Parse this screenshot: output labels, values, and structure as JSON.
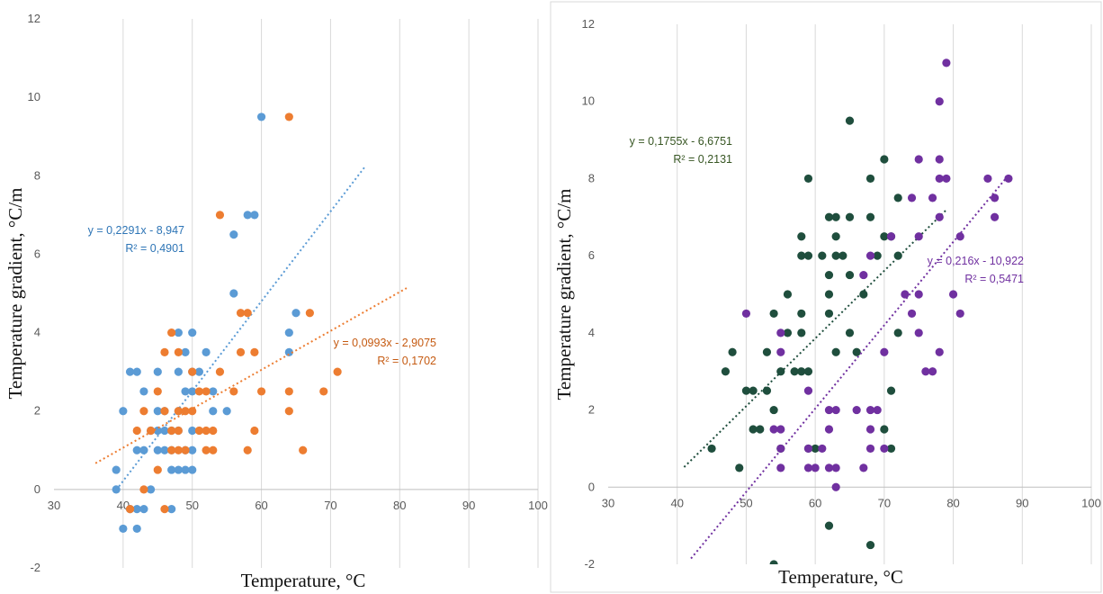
{
  "charts": [
    {
      "type": "scatter",
      "xlabel": "Temperature, °C",
      "ylabel": "Temperature gradient, °C/m",
      "xlim": [
        30,
        100
      ],
      "ylim": [
        -2,
        12
      ],
      "xticks": [
        "30",
        "40",
        "50",
        "60",
        "70",
        "80",
        "90",
        "100"
      ],
      "yticks": [
        "-2",
        "0",
        "2",
        "4",
        "6",
        "8",
        "10",
        "12"
      ],
      "grid": "vertical",
      "series": [
        {
          "color": "#5b9bd5",
          "points": [
            [
              39,
              0.5
            ],
            [
              39,
              0
            ],
            [
              40,
              2
            ],
            [
              40,
              -1
            ],
            [
              41,
              3
            ],
            [
              41,
              -0.5
            ],
            [
              42,
              3
            ],
            [
              42,
              1
            ],
            [
              42,
              -0.5
            ],
            [
              42,
              -1
            ],
            [
              43,
              2.5
            ],
            [
              43,
              1
            ],
            [
              43,
              -0.5
            ],
            [
              44,
              1.5
            ],
            [
              44,
              0
            ],
            [
              45,
              3
            ],
            [
              45,
              2
            ],
            [
              45,
              1.5
            ],
            [
              45,
              1
            ],
            [
              46,
              2
            ],
            [
              46,
              1
            ],
            [
              46,
              1.5
            ],
            [
              47,
              1.5
            ],
            [
              47,
              1
            ],
            [
              47,
              0.5
            ],
            [
              47,
              -0.5
            ],
            [
              48,
              4
            ],
            [
              48,
              3
            ],
            [
              48,
              2
            ],
            [
              48,
              1.5
            ],
            [
              48,
              0.5
            ],
            [
              49,
              3.5
            ],
            [
              49,
              2.5
            ],
            [
              49,
              1
            ],
            [
              49,
              0.5
            ],
            [
              50,
              4
            ],
            [
              50,
              3
            ],
            [
              50,
              2.5
            ],
            [
              50,
              1.5
            ],
            [
              50,
              1
            ],
            [
              50,
              0.5
            ],
            [
              51,
              3
            ],
            [
              52,
              3.5
            ],
            [
              53,
              2.5
            ],
            [
              53,
              2
            ],
            [
              55,
              2
            ],
            [
              56,
              6.5
            ],
            [
              56,
              5
            ],
            [
              58,
              7
            ],
            [
              59,
              7
            ],
            [
              60,
              9.5
            ],
            [
              64,
              4
            ],
            [
              64,
              3.5
            ],
            [
              65,
              4.5
            ]
          ],
          "trendline": {
            "x_range": [
              39,
              75
            ],
            "slope": 0.2291,
            "intercept": -8.947,
            "eq_text": "y = 0,2291x - 8,947",
            "r2_text": "R² = 0,4901"
          }
        },
        {
          "color": "#ed7d31",
          "points": [
            [
              41,
              -0.5
            ],
            [
              42,
              1.5
            ],
            [
              43,
              2
            ],
            [
              43,
              0
            ],
            [
              44,
              1.5
            ],
            [
              45,
              2.5
            ],
            [
              45,
              0.5
            ],
            [
              46,
              3.5
            ],
            [
              46,
              2
            ],
            [
              46,
              -0.5
            ],
            [
              47,
              4
            ],
            [
              47,
              1.5
            ],
            [
              47,
              1
            ],
            [
              48,
              3.5
            ],
            [
              48,
              1.5
            ],
            [
              48,
              1
            ],
            [
              48,
              2
            ],
            [
              49,
              2
            ],
            [
              49,
              1
            ],
            [
              50,
              3
            ],
            [
              50,
              2
            ],
            [
              51,
              2.5
            ],
            [
              51,
              1.5
            ],
            [
              52,
              1.5
            ],
            [
              52,
              1
            ],
            [
              52,
              2.5
            ],
            [
              53,
              1.5
            ],
            [
              53,
              1
            ],
            [
              54,
              7
            ],
            [
              54,
              3
            ],
            [
              56,
              2.5
            ],
            [
              57,
              4.5
            ],
            [
              57,
              3.5
            ],
            [
              58,
              4.5
            ],
            [
              58,
              1
            ],
            [
              59,
              3.5
            ],
            [
              59,
              1.5
            ],
            [
              60,
              2.5
            ],
            [
              64,
              9.5
            ],
            [
              64,
              2.5
            ],
            [
              64,
              2
            ],
            [
              67,
              4.5
            ],
            [
              66,
              1
            ],
            [
              69,
              2.5
            ],
            [
              71,
              3
            ]
          ],
          "trendline": {
            "x_range": [
              36,
              81
            ],
            "slope": 0.0993,
            "intercept": -2.9075,
            "eq_text": "y = 0,0993x - 2,9075",
            "r2_text": "R² = 0,1702"
          }
        }
      ]
    },
    {
      "type": "scatter",
      "xlabel": "Temperature, °C",
      "ylabel": "Temperature gradient, °C/m",
      "xlim": [
        30,
        100
      ],
      "ylim": [
        -2,
        12
      ],
      "xticks": [
        "30",
        "40",
        "50",
        "60",
        "70",
        "80",
        "90",
        "100"
      ],
      "yticks": [
        "-2",
        "0",
        "2",
        "4",
        "6",
        "8",
        "10",
        "12"
      ],
      "grid": "vertical",
      "series": [
        {
          "color": "#1f4e3d",
          "points": [
            [
              45,
              1
            ],
            [
              47,
              3
            ],
            [
              48,
              3.5
            ],
            [
              49,
              0.5
            ],
            [
              50,
              2.5
            ],
            [
              51,
              2.5
            ],
            [
              51,
              1.5
            ],
            [
              52,
              1.5
            ],
            [
              53,
              2.5
            ],
            [
              53,
              3.5
            ],
            [
              54,
              4.5
            ],
            [
              54,
              2
            ],
            [
              54,
              -2
            ],
            [
              55,
              3
            ],
            [
              55,
              1
            ],
            [
              56,
              5
            ],
            [
              56,
              4
            ],
            [
              57,
              3
            ],
            [
              58,
              6.5
            ],
            [
              58,
              6
            ],
            [
              58,
              4.5
            ],
            [
              58,
              4
            ],
            [
              58,
              3
            ],
            [
              59,
              8
            ],
            [
              59,
              6
            ],
            [
              59,
              3
            ],
            [
              59,
              1
            ],
            [
              60,
              1
            ],
            [
              61,
              6
            ],
            [
              62,
              7
            ],
            [
              62,
              5.5
            ],
            [
              62,
              5
            ],
            [
              62,
              4.5
            ],
            [
              62,
              -1
            ],
            [
              63,
              7
            ],
            [
              63,
              6.5
            ],
            [
              63,
              6
            ],
            [
              63,
              3.5
            ],
            [
              64,
              6
            ],
            [
              65,
              9.5
            ],
            [
              65,
              7
            ],
            [
              65,
              5.5
            ],
            [
              65,
              4
            ],
            [
              66,
              3.5
            ],
            [
              67,
              5
            ],
            [
              68,
              8
            ],
            [
              68,
              7
            ],
            [
              68,
              -1.5
            ],
            [
              69,
              6
            ],
            [
              70,
              8.5
            ],
            [
              70,
              6.5
            ],
            [
              70,
              1.5
            ],
            [
              71,
              6.5
            ],
            [
              71,
              2.5
            ],
            [
              71,
              1
            ],
            [
              72,
              7.5
            ],
            [
              72,
              6
            ],
            [
              72,
              4
            ]
          ],
          "trendline": {
            "x_range": [
              41,
              79
            ],
            "slope": 0.1755,
            "intercept": -6.6751,
            "eq_text": "y = 0,1755x - 6,6751",
            "r2_text": "R² = 0,2131"
          }
        },
        {
          "color": "#7030a0",
          "points": [
            [
              50,
              4.5
            ],
            [
              54,
              1.5
            ],
            [
              55,
              4
            ],
            [
              55,
              3.5
            ],
            [
              55,
              1.5
            ],
            [
              55,
              1
            ],
            [
              55,
              0.5
            ],
            [
              59,
              2.5
            ],
            [
              59,
              1
            ],
            [
              59,
              0.5
            ],
            [
              60,
              0.5
            ],
            [
              61,
              1
            ],
            [
              62,
              2
            ],
            [
              62,
              1.5
            ],
            [
              62,
              0.5
            ],
            [
              63,
              2
            ],
            [
              63,
              0.5
            ],
            [
              63,
              0
            ],
            [
              66,
              2
            ],
            [
              67,
              5.5
            ],
            [
              67,
              0.5
            ],
            [
              68,
              6
            ],
            [
              68,
              1.5
            ],
            [
              68,
              1
            ],
            [
              68,
              2
            ],
            [
              69,
              2
            ],
            [
              70,
              3.5
            ],
            [
              70,
              1
            ],
            [
              71,
              6.5
            ],
            [
              73,
              5
            ],
            [
              74,
              7.5
            ],
            [
              74,
              4.5
            ],
            [
              75,
              8.5
            ],
            [
              75,
              6.5
            ],
            [
              75,
              5
            ],
            [
              75,
              4
            ],
            [
              76,
              3
            ],
            [
              77,
              7.5
            ],
            [
              77,
              3
            ],
            [
              78,
              10
            ],
            [
              78,
              8.5
            ],
            [
              78,
              8
            ],
            [
              78,
              7
            ],
            [
              78,
              3.5
            ],
            [
              79,
              11
            ],
            [
              79,
              8
            ],
            [
              80,
              5
            ],
            [
              81,
              6.5
            ],
            [
              81,
              4.5
            ],
            [
              85,
              8
            ],
            [
              86,
              7.5
            ],
            [
              86,
              7
            ],
            [
              88,
              8
            ]
          ],
          "trendline": {
            "x_range": [
              42,
              88
            ],
            "slope": 0.216,
            "intercept": -10.922,
            "eq_text": "y = 0,216x - 10,922",
            "r2_text": "R² = 0,5471"
          }
        }
      ]
    }
  ]
}
